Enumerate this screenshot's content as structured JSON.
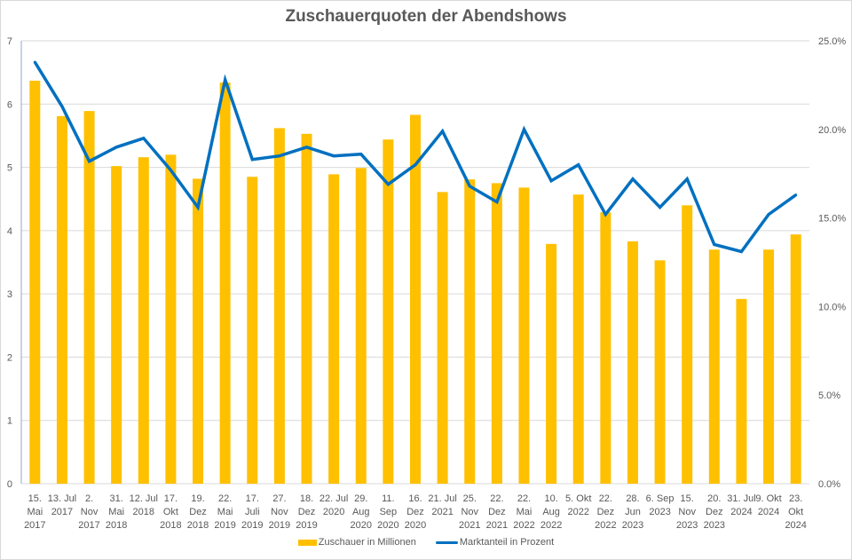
{
  "chart_data": {
    "type": "bar",
    "title": "Zuschauerquoten der Abendshows",
    "xlabel": "",
    "ylabel": "",
    "y2label": "",
    "ylim": [
      0,
      7
    ],
    "y2lim": [
      0,
      25
    ],
    "yticks": [
      "0",
      "1",
      "2",
      "3",
      "4",
      "5",
      "6",
      "7"
    ],
    "y2ticks": [
      "0.0%",
      "5.0%",
      "10.0%",
      "15.0%",
      "20.0%",
      "25.0%"
    ],
    "grid": true,
    "legend_position": "bottom",
    "categories": [
      [
        "15.",
        "Mai",
        "2017"
      ],
      [
        "13. Jul",
        "2017"
      ],
      [
        "2.",
        "Nov",
        "2017"
      ],
      [
        "31.",
        "Mai",
        "2018"
      ],
      [
        "12. Jul",
        "2018"
      ],
      [
        "17.",
        "Okt",
        "2018"
      ],
      [
        "19.",
        "Dez",
        "2018"
      ],
      [
        "22.",
        "Mai",
        "2019"
      ],
      [
        "17.",
        "Juli",
        "2019"
      ],
      [
        "27.",
        "Nov",
        "2019"
      ],
      [
        "18.",
        "Dez",
        "2019"
      ],
      [
        "22. Jul",
        "2020"
      ],
      [
        "29.",
        "Aug",
        "2020"
      ],
      [
        "11.",
        "Sep",
        "2020"
      ],
      [
        "16.",
        "Dez",
        "2020"
      ],
      [
        "21. Jul",
        "2021"
      ],
      [
        "25.",
        "Nov",
        "2021"
      ],
      [
        "22.",
        "Dez",
        "2021"
      ],
      [
        "22.",
        "Mai",
        "2022"
      ],
      [
        "10.",
        "Aug",
        "2022"
      ],
      [
        "5. Okt",
        "2022"
      ],
      [
        "22.",
        "Dez",
        "2022"
      ],
      [
        "28.",
        "Jun",
        "2023"
      ],
      [
        "6. Sep",
        "2023"
      ],
      [
        "15.",
        "Nov",
        "2023"
      ],
      [
        "20.",
        "Dez",
        "2023"
      ],
      [
        "31. Jul",
        "2024"
      ],
      [
        "9. Okt",
        "2024"
      ],
      [
        "23.",
        "Okt",
        "2024"
      ]
    ],
    "series": [
      {
        "name": "Zuschauer in Millionen",
        "type": "bar",
        "axis": "left",
        "color": "#ffc000",
        "values": [
          6.37,
          5.81,
          5.89,
          5.02,
          5.16,
          5.2,
          4.82,
          6.34,
          4.85,
          5.62,
          5.53,
          4.89,
          4.99,
          5.44,
          5.83,
          4.61,
          4.81,
          4.75,
          4.68,
          3.79,
          4.57,
          4.29,
          3.83,
          3.53,
          4.4,
          3.7,
          2.92,
          3.7,
          3.94
        ]
      },
      {
        "name": "Marktanteil in Prozent",
        "type": "line",
        "axis": "right",
        "color": "#0070c0",
        "values": [
          23.8,
          21.3,
          18.2,
          19.0,
          19.5,
          17.7,
          15.6,
          22.8,
          18.3,
          18.5,
          19.0,
          18.5,
          18.6,
          16.9,
          18.0,
          19.9,
          16.8,
          15.9,
          20.0,
          17.1,
          18.0,
          15.2,
          17.2,
          15.6,
          17.2,
          13.5,
          13.1,
          15.2,
          16.3
        ]
      }
    ]
  }
}
